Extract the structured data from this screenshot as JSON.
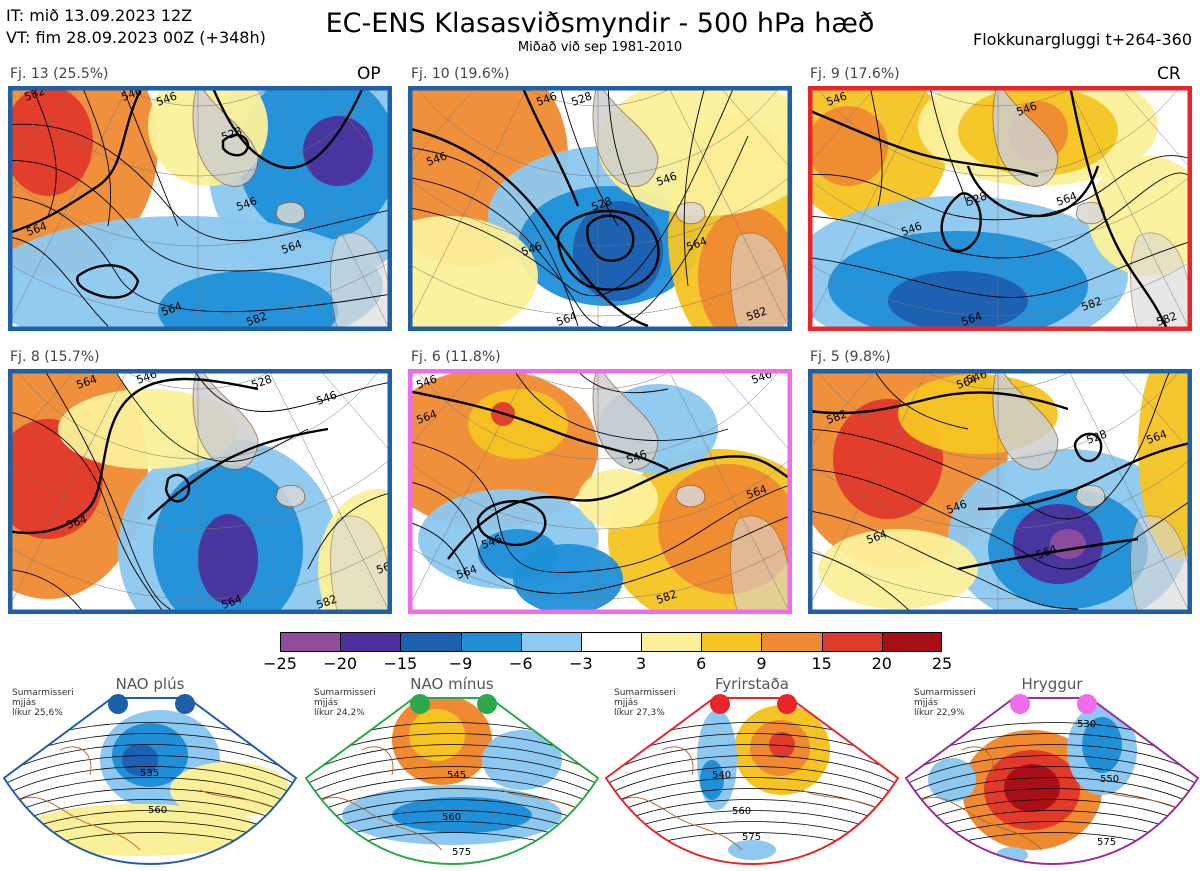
{
  "header": {
    "it": "IT: mið 13.09.2023 12Z",
    "vt": "VT: fim 28.09.2023 00Z  (+348h)",
    "title": "EC-ENS Klasasviðsmyndir - 500 hPa hæð",
    "subtitle": "Miðað við sep 1981-2010",
    "window": "Flokkunargluggi t+264-360"
  },
  "panels": [
    {
      "label": "Fj. 13 (25.5%)",
      "tag": "OP",
      "frame_color": "#1f5fa8",
      "regime": "NAO plús"
    },
    {
      "label": "Fj. 10 (19.6%)",
      "tag": "",
      "frame_color": "#1f5fa8",
      "regime": "NAO plús"
    },
    {
      "label": "Fj. 9 (17.6%)",
      "tag": "CR",
      "frame_color": "#e8262a",
      "regime": "Fyrirstaða"
    },
    {
      "label": "Fj. 8 (15.7%)",
      "tag": "",
      "frame_color": "#1f5fa8",
      "regime": "NAO plús"
    },
    {
      "label": "Fj. 6 (11.8%)",
      "tag": "",
      "frame_color": "#ee6cee",
      "regime": "Hryggur"
    },
    {
      "label": "Fj. 5 (9.8%)",
      "tag": "",
      "frame_color": "#1f5fa8",
      "regime": "NAO plús"
    }
  ],
  "contour_labels": [
    "528",
    "546",
    "564",
    "582"
  ],
  "colorbar": {
    "ticks": [
      "−25",
      "−20",
      "−15",
      "−9",
      "−6",
      "−3",
      "3",
      "6",
      "9",
      "15",
      "20",
      "25"
    ],
    "colors": [
      "#8e4e9c",
      "#4b2f9a",
      "#1d5fb0",
      "#1f8fd8",
      "#8cc8ef",
      "#ffffff",
      "#fbf09a",
      "#f5c422",
      "#ef8a30",
      "#e13a2b",
      "#a80f17"
    ]
  },
  "regimes": [
    {
      "name": "NAO plús",
      "note": [
        "Sumarmisseri",
        "mjjás",
        "líkur 25,6%"
      ],
      "color": "#1f5fa8",
      "dot_color": "#1f5fa8",
      "labels": [
        "535",
        "560"
      ]
    },
    {
      "name": "NAO mínus",
      "note": [
        "Sumarmisseri",
        "mjjás",
        "líkur 24,2%"
      ],
      "color": "#2aa84a",
      "dot_color": "#2aa84a",
      "labels": [
        "545",
        "560",
        "575"
      ]
    },
    {
      "name": "Fyrirstaða",
      "note": [
        "Sumarmisseri",
        "mjjás",
        "líkur 27,3%"
      ],
      "color": "#e8262a",
      "dot_color": "#e8262a",
      "labels": [
        "540",
        "560",
        "575"
      ]
    },
    {
      "name": "Hryggur",
      "note": [
        "Sumarmisseri",
        "mjjás",
        "líkur 22,9%"
      ],
      "color": "#9a2d9a",
      "dot_color": "#ee6cee",
      "labels": [
        "530",
        "550",
        "575"
      ]
    }
  ]
}
